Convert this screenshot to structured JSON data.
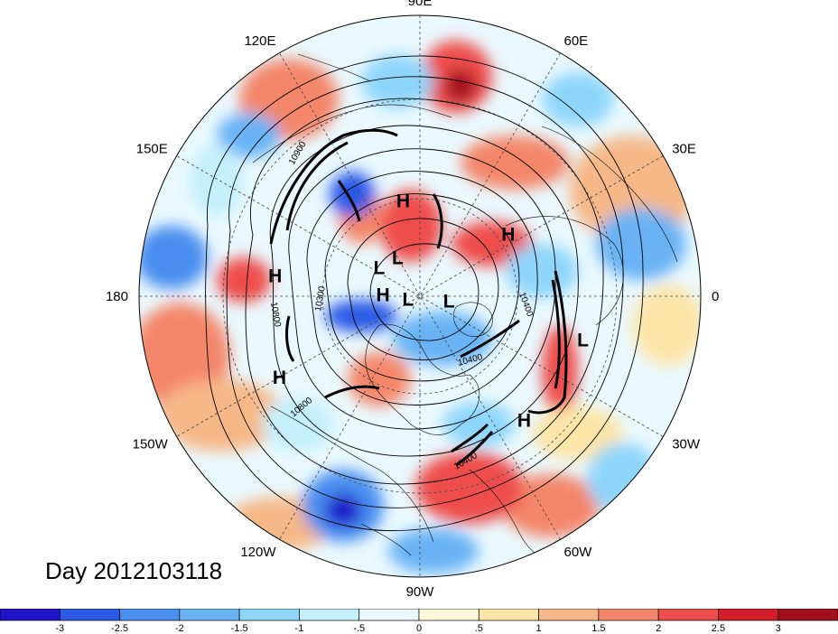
{
  "map": {
    "projection": "north-polar-stereographic",
    "longitude_labels": [
      "90E",
      "60E",
      "30E",
      "0",
      "30W",
      "60W",
      "90W",
      "120W",
      "150W",
      "180",
      "150E",
      "120E"
    ],
    "longitude_label_degrees": [
      90,
      60,
      30,
      0,
      -30,
      -60,
      -90,
      -120,
      -150,
      180,
      150,
      120
    ],
    "centers": [
      {
        "type": "H",
        "lon": 100,
        "lat": 52
      },
      {
        "type": "H",
        "lon": 35,
        "lat": 48
      },
      {
        "type": "H",
        "lon": 172,
        "lat": 35
      },
      {
        "type": "H",
        "lon": 178,
        "lat": 75
      },
      {
        "type": "H",
        "lon": -150,
        "lat": 30
      },
      {
        "type": "H",
        "lon": -50,
        "lat": 30
      },
      {
        "type": "L",
        "lon": 145,
        "lat": 70
      },
      {
        "type": "L",
        "lon": 120,
        "lat": 72
      },
      {
        "type": "L",
        "lon": -10,
        "lat": 78
      },
      {
        "type": "L",
        "lon": -165,
        "lat": 85
      },
      {
        "type": "L",
        "lon": -15,
        "lat": 28
      }
    ],
    "contour_labels": [
      "10900",
      "10800",
      "10300",
      "10400",
      "10400",
      "10400",
      "10800"
    ],
    "contour_colors": {
      "thin": "#000000",
      "jet": "#000000"
    }
  },
  "title": "Day 2012103118",
  "colorbar": {
    "tick_labels": [
      "-3",
      "-2.5",
      "-2",
      "-1.5",
      "-1",
      "-.5",
      "0",
      ".5",
      "1",
      "1.5",
      "2",
      "2.5",
      "3"
    ],
    "colors": [
      "#1f14c8",
      "#2c5ae6",
      "#4a8ef0",
      "#69b3f5",
      "#8fd6fb",
      "#c4effd",
      "#eaf9fe",
      "#fff8d8",
      "#fde5a8",
      "#f7b887",
      "#f4866a",
      "#ee4e4b",
      "#d31d2a",
      "#a30e1c"
    ]
  }
}
